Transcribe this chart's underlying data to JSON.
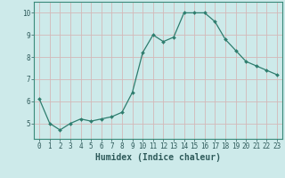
{
  "x": [
    0,
    1,
    2,
    3,
    4,
    5,
    6,
    7,
    8,
    9,
    10,
    11,
    12,
    13,
    14,
    15,
    16,
    17,
    18,
    19,
    20,
    21,
    22,
    23
  ],
  "y": [
    6.1,
    5.0,
    4.7,
    5.0,
    5.2,
    5.1,
    5.2,
    5.3,
    5.5,
    6.4,
    8.2,
    9.0,
    8.7,
    8.9,
    10.0,
    10.0,
    10.0,
    9.6,
    8.8,
    8.3,
    7.8,
    7.6,
    7.4,
    7.2
  ],
  "line_color": "#2e7d6e",
  "marker": "D",
  "marker_size": 2.0,
  "bg_color": "#cdeaea",
  "grid_color_major": "#b8d8d8",
  "grid_color_minor": "#daeaea",
  "xlabel": "Humidex (Indice chaleur)",
  "xlim": [
    -0.5,
    23.5
  ],
  "ylim": [
    4.3,
    10.5
  ],
  "yticks": [
    5,
    6,
    7,
    8,
    9,
    10
  ],
  "xticks": [
    0,
    1,
    2,
    3,
    4,
    5,
    6,
    7,
    8,
    9,
    10,
    11,
    12,
    13,
    14,
    15,
    16,
    17,
    18,
    19,
    20,
    21,
    22,
    23
  ],
  "tick_fontsize": 5.5,
  "xlabel_fontsize": 7.0,
  "spine_color": "#3a8a7a",
  "tick_color": "#2e5a5a"
}
